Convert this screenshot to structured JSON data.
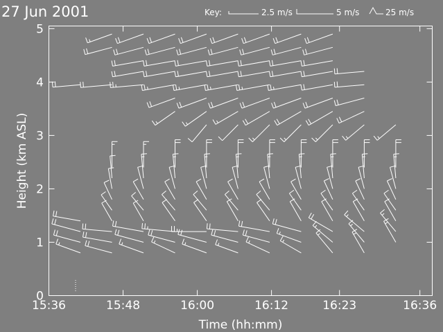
{
  "chart_data": {
    "type": "wind-barb",
    "title": "27 Jun 2001",
    "xlabel": "Time (hh:mm)",
    "ylabel": "Height (km ASL)",
    "x_ticks": [
      "15:36",
      "15:48",
      "16:00",
      "16:12",
      "16:23",
      "16:36"
    ],
    "x_tick_minutes": [
      936,
      948,
      960,
      972,
      983,
      996
    ],
    "xlim": [
      936,
      998
    ],
    "y_ticks": [
      "0",
      "1",
      "2",
      "3",
      "4",
      "5"
    ],
    "ylim": [
      0,
      5.05
    ],
    "legend": {
      "label": "Key:",
      "entries": [
        {
          "speed": 2.5,
          "text": "2.5 m/s"
        },
        {
          "speed": 5,
          "text": "5 m/s"
        },
        {
          "speed": 25,
          "text": "25 m/s"
        }
      ]
    },
    "profile_times_minutes": [
      941.1,
      946.2,
      951.3,
      956.4,
      961.5,
      966.6,
      971.7,
      976.8,
      981.9,
      987.0,
      992.1
    ],
    "profiles": [
      {
        "time": 941.1,
        "levels": [
          {
            "h": 0.8,
            "dir": 290,
            "spd": 9
          },
          {
            "h": 1.0,
            "dir": 285,
            "spd": 10
          },
          {
            "h": 1.2,
            "dir": 285,
            "spd": 11
          },
          {
            "h": 1.4,
            "dir": 280,
            "spd": 10
          },
          {
            "h": 3.95,
            "dir": 265,
            "spd": 10
          }
        ]
      },
      {
        "time": 946.2,
        "levels": [
          {
            "h": 0.8,
            "dir": 285,
            "spd": 10
          },
          {
            "h": 1.0,
            "dir": 280,
            "spd": 11
          },
          {
            "h": 1.2,
            "dir": 275,
            "spd": 11
          },
          {
            "h": 1.4,
            "dir": 330,
            "spd": 6
          },
          {
            "h": 1.6,
            "dir": 325,
            "spd": 5
          },
          {
            "h": 1.8,
            "dir": 335,
            "spd": 5
          },
          {
            "h": 2.0,
            "dir": 350,
            "spd": 6
          },
          {
            "h": 2.2,
            "dir": 355,
            "spd": 7
          },
          {
            "h": 2.4,
            "dir": 0,
            "spd": 9
          },
          {
            "h": 3.95,
            "dir": 265,
            "spd": 12
          },
          {
            "h": 4.65,
            "dir": 255,
            "spd": 10
          },
          {
            "h": 4.9,
            "dir": 250,
            "spd": 9
          }
        ]
      },
      {
        "time": 951.3,
        "levels": [
          {
            "h": 0.8,
            "dir": 290,
            "spd": 9
          },
          {
            "h": 1.0,
            "dir": 285,
            "spd": 11
          },
          {
            "h": 1.2,
            "dir": 280,
            "spd": 12
          },
          {
            "h": 1.4,
            "dir": 330,
            "spd": 6
          },
          {
            "h": 1.6,
            "dir": 320,
            "spd": 5
          },
          {
            "h": 1.8,
            "dir": 330,
            "spd": 6
          },
          {
            "h": 2.0,
            "dir": 345,
            "spd": 7
          },
          {
            "h": 2.2,
            "dir": 355,
            "spd": 8
          },
          {
            "h": 2.4,
            "dir": 0,
            "spd": 9
          },
          {
            "h": 3.95,
            "dir": 265,
            "spd": 13
          },
          {
            "h": 4.2,
            "dir": 260,
            "spd": 12
          },
          {
            "h": 4.4,
            "dir": 260,
            "spd": 12
          },
          {
            "h": 4.65,
            "dir": 255,
            "spd": 11
          },
          {
            "h": 4.9,
            "dir": 250,
            "spd": 10
          }
        ]
      },
      {
        "time": 956.4,
        "levels": [
          {
            "h": 0.8,
            "dir": 295,
            "spd": 9
          },
          {
            "h": 1.0,
            "dir": 285,
            "spd": 10
          },
          {
            "h": 1.2,
            "dir": 275,
            "spd": 13
          },
          {
            "h": 1.4,
            "dir": 325,
            "spd": 7
          },
          {
            "h": 1.6,
            "dir": 320,
            "spd": 6
          },
          {
            "h": 1.8,
            "dir": 330,
            "spd": 6
          },
          {
            "h": 2.0,
            "dir": 345,
            "spd": 7
          },
          {
            "h": 2.2,
            "dir": 355,
            "spd": 8
          },
          {
            "h": 2.4,
            "dir": 0,
            "spd": 10
          },
          {
            "h": 3.45,
            "dir": 235,
            "spd": 8
          },
          {
            "h": 3.7,
            "dir": 250,
            "spd": 10
          },
          {
            "h": 3.95,
            "dir": 260,
            "spd": 13
          },
          {
            "h": 4.2,
            "dir": 260,
            "spd": 12
          },
          {
            "h": 4.4,
            "dir": 260,
            "spd": 12
          },
          {
            "h": 4.65,
            "dir": 255,
            "spd": 11
          },
          {
            "h": 4.9,
            "dir": 250,
            "spd": 10
          }
        ]
      },
      {
        "time": 961.5,
        "levels": [
          {
            "h": 0.8,
            "dir": 290,
            "spd": 9
          },
          {
            "h": 1.0,
            "dir": 285,
            "spd": 11
          },
          {
            "h": 1.2,
            "dir": 270,
            "spd": 14
          },
          {
            "h": 1.4,
            "dir": 325,
            "spd": 7
          },
          {
            "h": 1.6,
            "dir": 320,
            "spd": 6
          },
          {
            "h": 1.8,
            "dir": 330,
            "spd": 6
          },
          {
            "h": 2.0,
            "dir": 345,
            "spd": 7
          },
          {
            "h": 2.2,
            "dir": 355,
            "spd": 8
          },
          {
            "h": 2.4,
            "dir": 0,
            "spd": 10
          },
          {
            "h": 3.2,
            "dir": 220,
            "spd": 7
          },
          {
            "h": 3.45,
            "dir": 235,
            "spd": 9
          },
          {
            "h": 3.7,
            "dir": 250,
            "spd": 11
          },
          {
            "h": 3.95,
            "dir": 260,
            "spd": 13
          },
          {
            "h": 4.2,
            "dir": 260,
            "spd": 12
          },
          {
            "h": 4.4,
            "dir": 260,
            "spd": 12
          },
          {
            "h": 4.65,
            "dir": 255,
            "spd": 11
          },
          {
            "h": 4.9,
            "dir": 250,
            "spd": 10
          }
        ]
      },
      {
        "time": 966.6,
        "levels": [
          {
            "h": 0.8,
            "dir": 290,
            "spd": 8
          },
          {
            "h": 1.0,
            "dir": 285,
            "spd": 10
          },
          {
            "h": 1.2,
            "dir": 275,
            "spd": 12
          },
          {
            "h": 1.4,
            "dir": 330,
            "spd": 7
          },
          {
            "h": 1.6,
            "dir": 320,
            "spd": 6
          },
          {
            "h": 1.8,
            "dir": 330,
            "spd": 6
          },
          {
            "h": 2.0,
            "dir": 345,
            "spd": 7
          },
          {
            "h": 2.2,
            "dir": 355,
            "spd": 8
          },
          {
            "h": 2.4,
            "dir": 0,
            "spd": 10
          },
          {
            "h": 3.2,
            "dir": 225,
            "spd": 7
          },
          {
            "h": 3.45,
            "dir": 240,
            "spd": 9
          },
          {
            "h": 3.7,
            "dir": 250,
            "spd": 11
          },
          {
            "h": 3.95,
            "dir": 260,
            "spd": 13
          },
          {
            "h": 4.2,
            "dir": 260,
            "spd": 12
          },
          {
            "h": 4.4,
            "dir": 260,
            "spd": 12
          },
          {
            "h": 4.65,
            "dir": 255,
            "spd": 11
          },
          {
            "h": 4.9,
            "dir": 250,
            "spd": 10
          }
        ]
      },
      {
        "time": 971.7,
        "levels": [
          {
            "h": 0.8,
            "dir": 295,
            "spd": 9
          },
          {
            "h": 1.0,
            "dir": 285,
            "spd": 10
          },
          {
            "h": 1.2,
            "dir": 280,
            "spd": 12
          },
          {
            "h": 1.4,
            "dir": 325,
            "spd": 7
          },
          {
            "h": 1.6,
            "dir": 320,
            "spd": 6
          },
          {
            "h": 1.8,
            "dir": 330,
            "spd": 6
          },
          {
            "h": 2.0,
            "dir": 345,
            "spd": 7
          },
          {
            "h": 2.2,
            "dir": 355,
            "spd": 8
          },
          {
            "h": 2.4,
            "dir": 0,
            "spd": 10
          },
          {
            "h": 3.2,
            "dir": 225,
            "spd": 8
          },
          {
            "h": 3.45,
            "dir": 240,
            "spd": 10
          },
          {
            "h": 3.7,
            "dir": 250,
            "spd": 11
          },
          {
            "h": 3.95,
            "dir": 260,
            "spd": 13
          },
          {
            "h": 4.2,
            "dir": 260,
            "spd": 12
          },
          {
            "h": 4.4,
            "dir": 260,
            "spd": 12
          },
          {
            "h": 4.65,
            "dir": 255,
            "spd": 11
          },
          {
            "h": 4.9,
            "dir": 250,
            "spd": 10
          }
        ]
      },
      {
        "time": 976.8,
        "levels": [
          {
            "h": 0.8,
            "dir": 300,
            "spd": 8
          },
          {
            "h": 1.0,
            "dir": 290,
            "spd": 9
          },
          {
            "h": 1.2,
            "dir": 285,
            "spd": 11
          },
          {
            "h": 1.4,
            "dir": 330,
            "spd": 7
          },
          {
            "h": 1.6,
            "dir": 325,
            "spd": 6
          },
          {
            "h": 1.8,
            "dir": 330,
            "spd": 6
          },
          {
            "h": 2.0,
            "dir": 345,
            "spd": 7
          },
          {
            "h": 2.2,
            "dir": 355,
            "spd": 8
          },
          {
            "h": 2.4,
            "dir": 0,
            "spd": 10
          },
          {
            "h": 3.2,
            "dir": 225,
            "spd": 8
          },
          {
            "h": 3.45,
            "dir": 240,
            "spd": 10
          },
          {
            "h": 3.7,
            "dir": 250,
            "spd": 11
          },
          {
            "h": 3.95,
            "dir": 260,
            "spd": 13
          },
          {
            "h": 4.2,
            "dir": 260,
            "spd": 12
          },
          {
            "h": 4.4,
            "dir": 260,
            "spd": 12
          },
          {
            "h": 4.65,
            "dir": 255,
            "spd": 11
          },
          {
            "h": 4.9,
            "dir": 250,
            "spd": 10
          }
        ]
      },
      {
        "time": 981.9,
        "levels": [
          {
            "h": 0.8,
            "dir": 320,
            "spd": 9
          },
          {
            "h": 1.0,
            "dir": 310,
            "spd": 9
          },
          {
            "h": 1.2,
            "dir": 300,
            "spd": 10
          },
          {
            "h": 1.4,
            "dir": 330,
            "spd": 7
          },
          {
            "h": 1.6,
            "dir": 325,
            "spd": 6
          },
          {
            "h": 1.8,
            "dir": 335,
            "spd": 6
          },
          {
            "h": 2.0,
            "dir": 345,
            "spd": 7
          },
          {
            "h": 2.2,
            "dir": 355,
            "spd": 8
          },
          {
            "h": 2.4,
            "dir": 0,
            "spd": 10
          },
          {
            "h": 3.2,
            "dir": 225,
            "spd": 8
          },
          {
            "h": 3.45,
            "dir": 240,
            "spd": 10
          },
          {
            "h": 3.7,
            "dir": 250,
            "spd": 11
          },
          {
            "h": 3.95,
            "dir": 260,
            "spd": 12
          },
          {
            "h": 4.2,
            "dir": 260,
            "spd": 12
          },
          {
            "h": 4.4,
            "dir": 260,
            "spd": 12
          },
          {
            "h": 4.65,
            "dir": 255,
            "spd": 11
          },
          {
            "h": 4.9,
            "dir": 250,
            "spd": 10
          }
        ]
      },
      {
        "time": 987.0,
        "levels": [
          {
            "h": 0.8,
            "dir": 330,
            "spd": 8
          },
          {
            "h": 1.0,
            "dir": 320,
            "spd": 8
          },
          {
            "h": 1.2,
            "dir": 310,
            "spd": 9
          },
          {
            "h": 1.4,
            "dir": 330,
            "spd": 7
          },
          {
            "h": 1.6,
            "dir": 325,
            "spd": 6
          },
          {
            "h": 1.8,
            "dir": 335,
            "spd": 6
          },
          {
            "h": 2.0,
            "dir": 345,
            "spd": 7
          },
          {
            "h": 2.2,
            "dir": 355,
            "spd": 8
          },
          {
            "h": 2.4,
            "dir": 0,
            "spd": 10
          },
          {
            "h": 3.2,
            "dir": 230,
            "spd": 8
          },
          {
            "h": 3.45,
            "dir": 245,
            "spd": 10
          },
          {
            "h": 3.7,
            "dir": 255,
            "spd": 11
          },
          {
            "h": 3.95,
            "dir": 265,
            "spd": 11
          },
          {
            "h": 4.2,
            "dir": 265,
            "spd": 11
          }
        ]
      },
      {
        "time": 992.1,
        "levels": [
          {
            "h": 1.0,
            "dir": 330,
            "spd": 8
          },
          {
            "h": 1.2,
            "dir": 320,
            "spd": 8
          },
          {
            "h": 1.4,
            "dir": 330,
            "spd": 7
          },
          {
            "h": 1.6,
            "dir": 325,
            "spd": 6
          },
          {
            "h": 1.8,
            "dir": 335,
            "spd": 6
          },
          {
            "h": 2.0,
            "dir": 345,
            "spd": 7
          },
          {
            "h": 2.2,
            "dir": 355,
            "spd": 8
          },
          {
            "h": 2.4,
            "dir": 0,
            "spd": 10
          },
          {
            "h": 3.2,
            "dir": 230,
            "spd": 8
          }
        ]
      }
    ]
  }
}
